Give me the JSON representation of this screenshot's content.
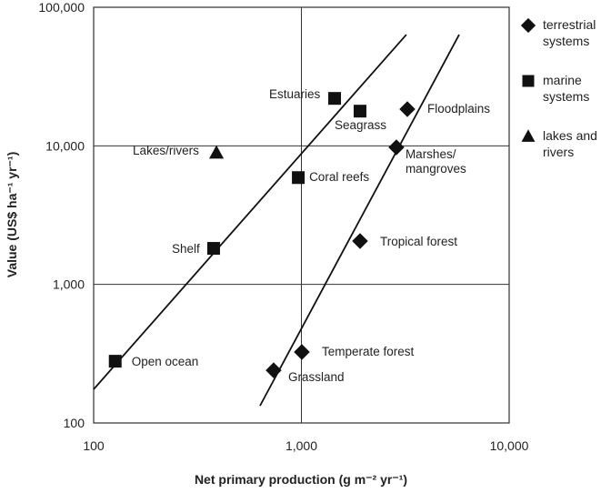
{
  "chart_data": {
    "type": "scatter",
    "xlabel": "Net primary production (g m⁻² yr⁻¹)",
    "ylabel": "Value (US$ ha⁻¹ yr⁻¹)",
    "xscale": "log",
    "yscale": "log",
    "xlim": [
      100,
      10000
    ],
    "ylim": [
      100,
      100000
    ],
    "xticks": [
      100,
      {
        "value": 1000,
        "label": "1,000"
      },
      {
        "value": 10000,
        "label": "10,000"
      }
    ],
    "yticks": [
      100,
      {
        "value": 1000,
        "label": "1,000"
      },
      {
        "value": 10000,
        "label": "10,000"
      },
      {
        "value": 100000,
        "label": "100,000"
      }
    ],
    "grid": true,
    "legend": "right",
    "series": [
      {
        "name": "terrestrial systems",
        "marker": "diamond",
        "color": "#111111",
        "x": [
          3235,
          2865,
          1915,
          1005,
          735
        ],
        "values": [
          18400,
          9750,
          2055,
          325,
          240
        ],
        "labels": [
          "Floodplains",
          "Marshes/\nmangroves",
          "Tropical forest",
          "Temperate forest",
          "Grassland"
        ]
      },
      {
        "name": "marine systems",
        "marker": "square",
        "color": "#111111",
        "x": [
          1445,
          1915,
          966,
          378,
          127
        ],
        "values": [
          22000,
          17800,
          5900,
          1820,
          279
        ],
        "labels": [
          "Estuaries",
          "Seagrass",
          "Coral reefs",
          "Shelf",
          "Open ocean"
        ]
      },
      {
        "name": "lakes and rivers",
        "marker": "triangle",
        "color": "#111111",
        "x": [
          390
        ],
        "values": [
          8900
        ],
        "labels": [
          "Lakes/rivers"
        ]
      }
    ],
    "fit_lines": [
      {
        "x": [
          100,
          3200
        ],
        "y": [
          175,
          63500
        ],
        "color": "#111111"
      },
      {
        "x": [
          632,
          5745
        ],
        "y": [
          133,
          63500
        ],
        "color": "#111111"
      }
    ]
  }
}
